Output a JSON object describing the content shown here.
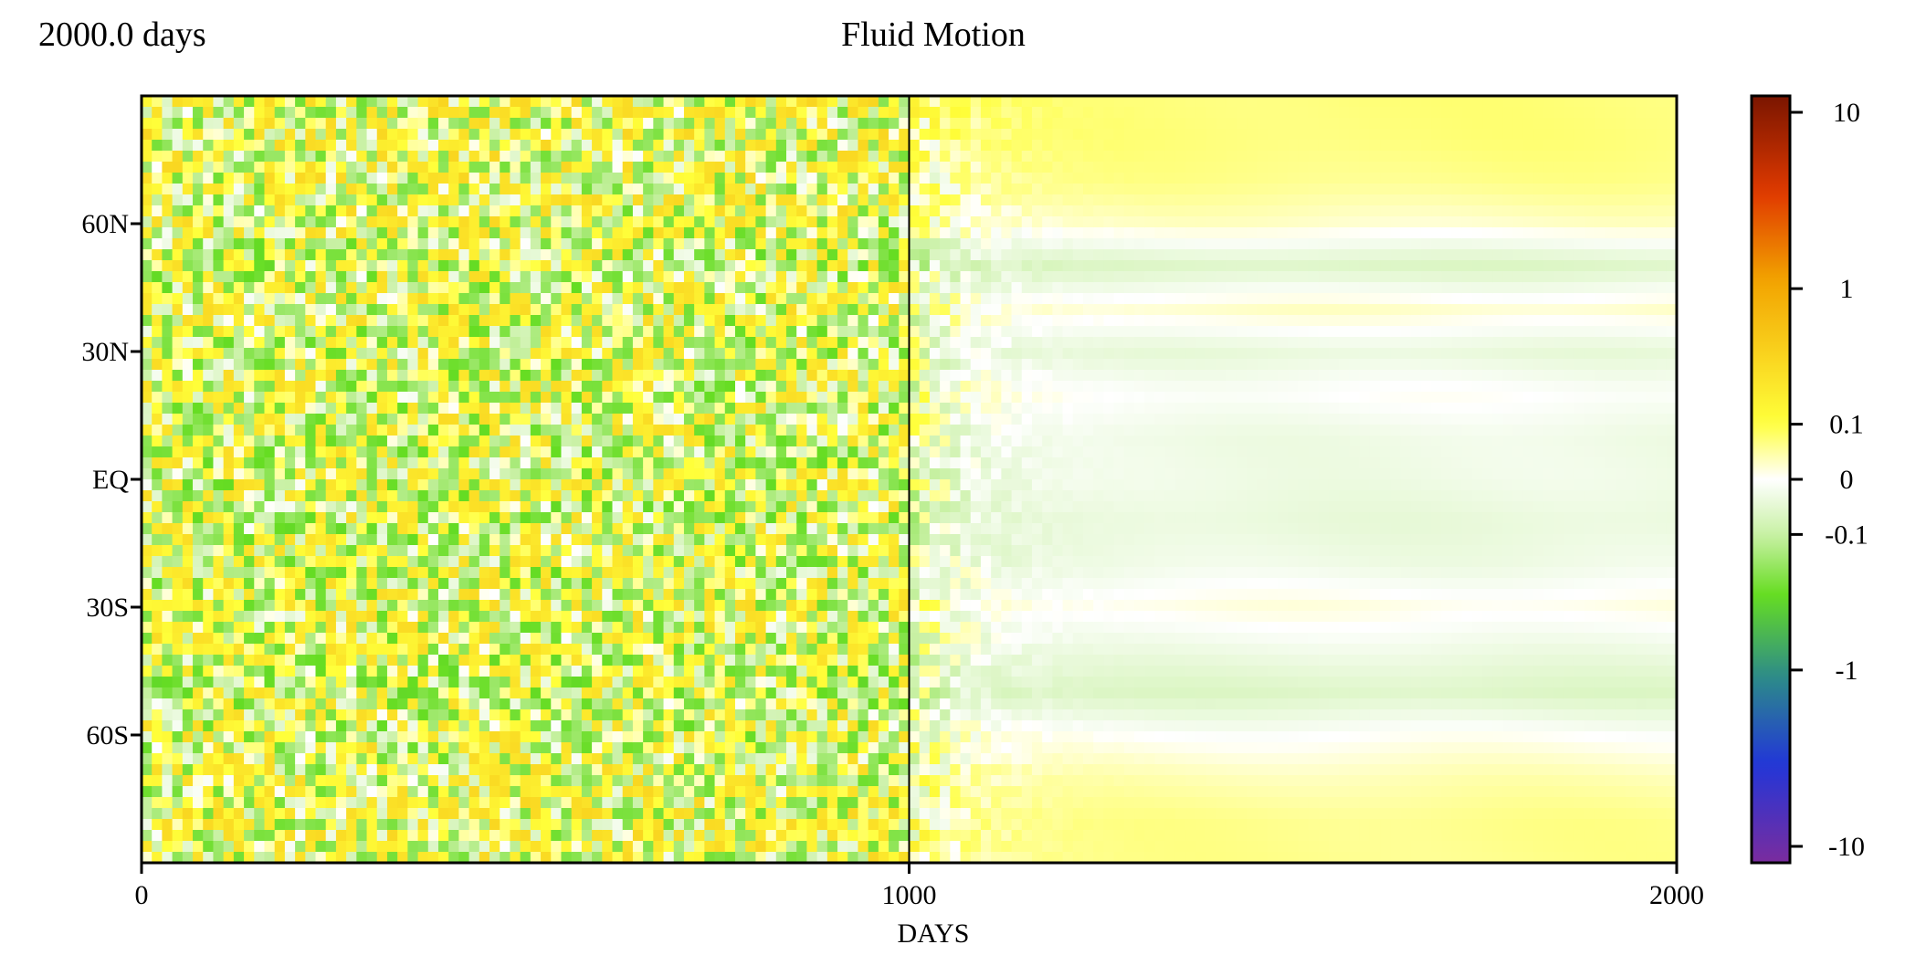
{
  "header": {
    "time_label": "2000.0 days",
    "title": "Fluid Motion"
  },
  "chart_data": {
    "type": "heatmap",
    "title": "Fluid Motion",
    "xlabel": "DAYS",
    "ylabel": "",
    "xlim": [
      0,
      2000
    ],
    "ylim": [
      -90,
      90
    ],
    "x_ticks": [
      {
        "value": 0,
        "label": "0"
      },
      {
        "value": 1000,
        "label": "1000"
      },
      {
        "value": 2000,
        "label": "2000"
      }
    ],
    "y_ticks": [
      {
        "value": 60,
        "label": "60N"
      },
      {
        "value": 30,
        "label": "30N"
      },
      {
        "value": 0,
        "label": "EQ"
      },
      {
        "value": -30,
        "label": "30S"
      },
      {
        "value": -60,
        "label": "60S"
      }
    ],
    "divider_x": 1000,
    "colorbar": {
      "scale": "symlog",
      "range": [
        -10,
        10
      ],
      "ticks": [
        {
          "value": 10,
          "label": "10"
        },
        {
          "value": 1,
          "label": "1"
        },
        {
          "value": 0.1,
          "label": "0.1"
        },
        {
          "value": 0,
          "label": "0"
        },
        {
          "value": -0.1,
          "label": "-0.1"
        },
        {
          "value": -1,
          "label": "-1"
        },
        {
          "value": -10,
          "label": "-10"
        }
      ],
      "stops": [
        {
          "value": 10,
          "color": "#7a1500"
        },
        {
          "value": 3,
          "color": "#e03a00"
        },
        {
          "value": 1,
          "color": "#f2a300"
        },
        {
          "value": 0.1,
          "color": "#ffff3a"
        },
        {
          "value": 0,
          "color": "#ffffff"
        },
        {
          "value": -0.1,
          "color": "#c6f0a0"
        },
        {
          "value": -0.3,
          "color": "#66dd22"
        },
        {
          "value": -1,
          "color": "#2c8a8a"
        },
        {
          "value": -3,
          "color": "#2236d8"
        },
        {
          "value": -10,
          "color": "#7a2c9e"
        }
      ]
    },
    "grid": false,
    "legend": "none",
    "zonal_profile_late": [
      {
        "lat": 80,
        "value": 0.06
      },
      {
        "lat": 70,
        "value": 0.05
      },
      {
        "lat": 60,
        "value": 0.02
      },
      {
        "lat": 50,
        "value": -0.05
      },
      {
        "lat": 40,
        "value": 0.02
      },
      {
        "lat": 30,
        "value": -0.03
      },
      {
        "lat": 20,
        "value": 0.0
      },
      {
        "lat": 10,
        "value": -0.02
      },
      {
        "lat": 0,
        "value": -0.02
      },
      {
        "lat": -10,
        "value": -0.03
      },
      {
        "lat": -20,
        "value": -0.02
      },
      {
        "lat": -30,
        "value": 0.01
      },
      {
        "lat": -40,
        "value": -0.02
      },
      {
        "lat": -50,
        "value": -0.05
      },
      {
        "lat": -60,
        "value": 0.0
      },
      {
        "lat": -70,
        "value": 0.03
      },
      {
        "lat": -80,
        "value": 0.05
      }
    ]
  }
}
